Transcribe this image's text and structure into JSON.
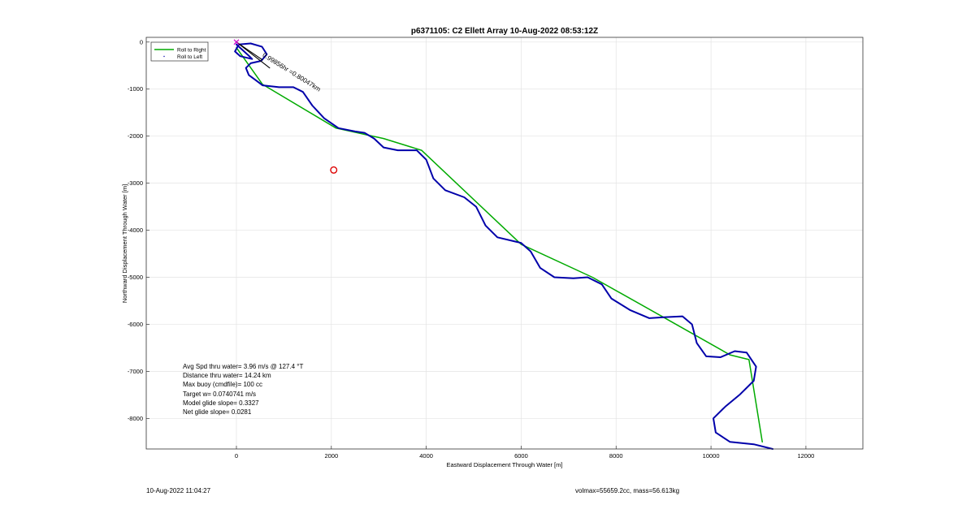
{
  "chart_data": {
    "type": "line",
    "title": "p6371105: C2 Ellett Array 10-Aug-2022 08:53:12Z",
    "xlabel": "Eastward Displacement Through Water [m]",
    "ylabel": "Northward Displacement Through Water [m]",
    "xlim": [
      -1900,
      13200
    ],
    "ylim": [
      -8650,
      100
    ],
    "xticks": [
      0,
      2000,
      4000,
      6000,
      8000,
      10000,
      12000
    ],
    "yticks": [
      0,
      -1000,
      -2000,
      -3000,
      -4000,
      -5000,
      -6000,
      -7000,
      -8000
    ],
    "grid": true,
    "legend": {
      "placement": "top-left",
      "entries": [
        "Roll to Right",
        "Roll to Left"
      ]
    },
    "series": [
      {
        "name": "Roll to Right",
        "color": "#00aa00",
        "points": [
          [
            0,
            -120
          ],
          [
            550,
            -900
          ],
          [
            2100,
            -1830
          ],
          [
            3100,
            -2050
          ],
          [
            3900,
            -2300
          ],
          [
            6000,
            -4300
          ],
          [
            7500,
            -5000
          ],
          [
            9000,
            -5850
          ],
          [
            10400,
            -6650
          ],
          [
            10800,
            -6750
          ],
          [
            11080,
            -8500
          ]
        ]
      },
      {
        "name": "Roll to Left",
        "color": "#0000aa",
        "points": [
          [
            0,
            -50
          ],
          [
            120,
            -160
          ],
          [
            260,
            -290
          ],
          [
            330,
            -360
          ],
          [
            80,
            -300
          ],
          [
            -30,
            -200
          ],
          [
            50,
            -50
          ],
          [
            300,
            -30
          ],
          [
            540,
            -100
          ],
          [
            640,
            -260
          ],
          [
            520,
            -400
          ],
          [
            300,
            -450
          ],
          [
            200,
            -550
          ],
          [
            260,
            -700
          ],
          [
            420,
            -820
          ],
          [
            550,
            -920
          ],
          [
            900,
            -960
          ],
          [
            1200,
            -960
          ],
          [
            1400,
            -1060
          ],
          [
            1600,
            -1350
          ],
          [
            1850,
            -1620
          ],
          [
            2150,
            -1830
          ],
          [
            2500,
            -1900
          ],
          [
            2700,
            -1930
          ],
          [
            2900,
            -2050
          ],
          [
            3100,
            -2240
          ],
          [
            3400,
            -2300
          ],
          [
            3800,
            -2300
          ],
          [
            4000,
            -2500
          ],
          [
            4150,
            -2900
          ],
          [
            4400,
            -3150
          ],
          [
            4800,
            -3300
          ],
          [
            5050,
            -3500
          ],
          [
            5250,
            -3900
          ],
          [
            5500,
            -4150
          ],
          [
            6000,
            -4270
          ],
          [
            6200,
            -4450
          ],
          [
            6400,
            -4800
          ],
          [
            6700,
            -5000
          ],
          [
            7100,
            -5020
          ],
          [
            7400,
            -5000
          ],
          [
            7700,
            -5150
          ],
          [
            7900,
            -5450
          ],
          [
            8300,
            -5700
          ],
          [
            8700,
            -5870
          ],
          [
            9000,
            -5850
          ],
          [
            9400,
            -5830
          ],
          [
            9600,
            -6000
          ],
          [
            9700,
            -6400
          ],
          [
            9900,
            -6680
          ],
          [
            10200,
            -6700
          ],
          [
            10500,
            -6570
          ],
          [
            10750,
            -6600
          ],
          [
            10950,
            -6900
          ],
          [
            10900,
            -7200
          ],
          [
            10600,
            -7500
          ],
          [
            10300,
            -7750
          ],
          [
            10050,
            -8000
          ],
          [
            10100,
            -8300
          ],
          [
            10400,
            -8500
          ],
          [
            10900,
            -8550
          ],
          [
            11300,
            -8650
          ]
        ]
      },
      {
        "name": "",
        "color": "#000000",
        "points": [
          [
            0,
            0
          ],
          [
            700,
            -550
          ]
        ]
      },
      {
        "name": "",
        "color": "#000000",
        "points": [
          [
            0,
            0
          ],
          [
            550,
            -380
          ]
        ]
      }
    ],
    "markers": [
      {
        "label": "target",
        "shape": "circle",
        "color": "#dd0000",
        "x": 2050,
        "y": -2720
      },
      {
        "label": "start",
        "shape": "x",
        "color": "#cc00cc",
        "x": 0,
        "y": 0
      }
    ],
    "annotations": [
      {
        "text": "0.99856hr =0.80047km",
        "x": 540,
        "y": -300,
        "rotation": 32
      }
    ],
    "stats": [
      "Avg Spd thru water=  3.96 m/s @ 127.4 °T",
      "Distance thru water= 14.24 km",
      "Max buoy (cmdfile)= 100 cc",
      "Target w= 0.0740741 m/s",
      "Model glide slope= 0.3327",
      "Net glide slope= 0.0281"
    ]
  },
  "footer": {
    "left": "10-Aug-2022 11:04:27",
    "right": "volmax=55659.2cc, mass=56.613kg"
  }
}
